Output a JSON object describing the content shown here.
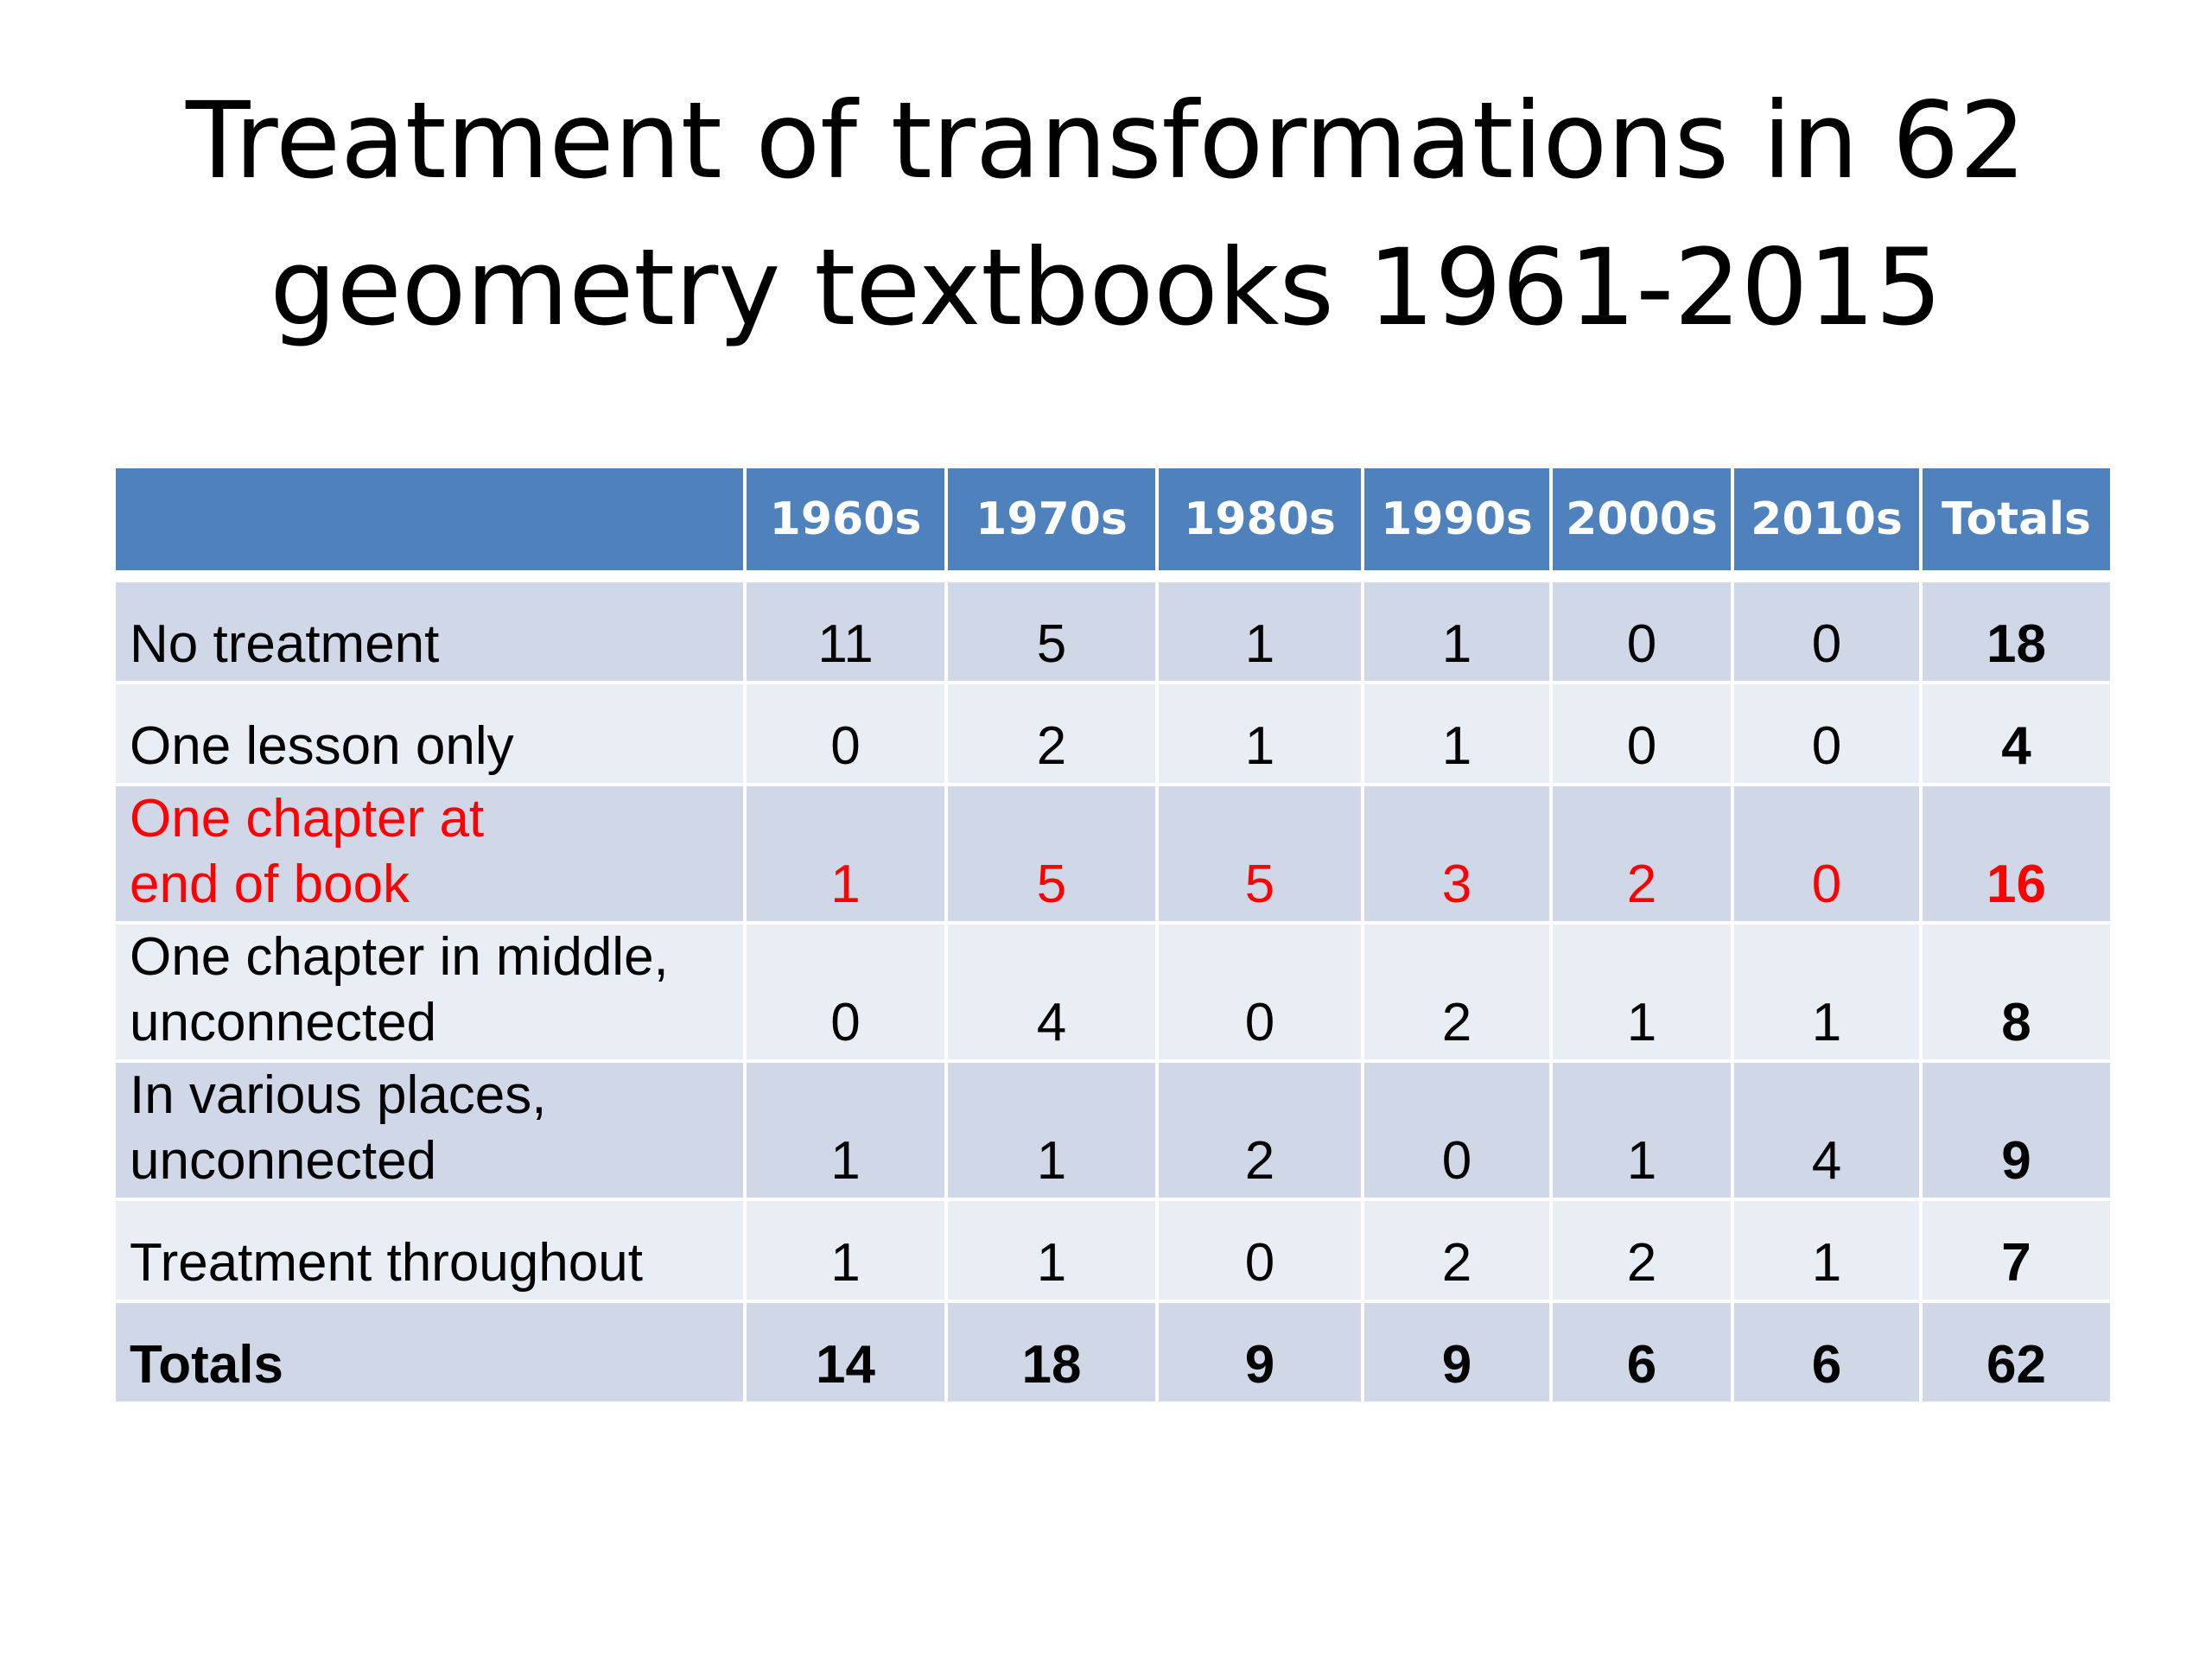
{
  "slide": {
    "title_line1": "Treatment of transformations in 62",
    "title_line2": "geometry textbooks 1961-2015"
  },
  "table": {
    "columns": [
      "",
      "1960s",
      "1970s",
      "1980s",
      "1990s",
      "2000s",
      "2010s",
      "Totals"
    ],
    "rows": [
      {
        "label_line1": "No treatment",
        "label_line2": "",
        "values": [
          "11",
          "5",
          "1",
          "1",
          "0",
          "0"
        ],
        "total": "18"
      },
      {
        "label_line1": "One lesson only",
        "label_line2": "",
        "values": [
          "0",
          "2",
          "1",
          "1",
          "0",
          "0"
        ],
        "total": "4"
      },
      {
        "label_line1": "One chapter at",
        "label_line2": "end of book",
        "values": [
          "1",
          "5",
          "5",
          "3",
          "2",
          "0"
        ],
        "total": "16"
      },
      {
        "label_line1": "One chapter in middle,",
        "label_line2": "unconnected",
        "values": [
          "0",
          "4",
          "0",
          "2",
          "1",
          "1"
        ],
        "total": "8"
      },
      {
        "label_line1": "In various places,",
        "label_line2": "unconnected",
        "values": [
          "1",
          "1",
          "2",
          "0",
          "1",
          "4"
        ],
        "total": "9"
      },
      {
        "label_line1": "Treatment throughout",
        "label_line2": "",
        "values": [
          "1",
          "1",
          "0",
          "2",
          "2",
          "1"
        ],
        "total": "7"
      },
      {
        "label_line1": "Totals",
        "label_line2": "",
        "values": [
          "14",
          "18",
          "9",
          "9",
          "6",
          "6"
        ],
        "total": "62"
      }
    ],
    "highlight_color": "#ff0000",
    "header_color": "#4f81bd"
  }
}
